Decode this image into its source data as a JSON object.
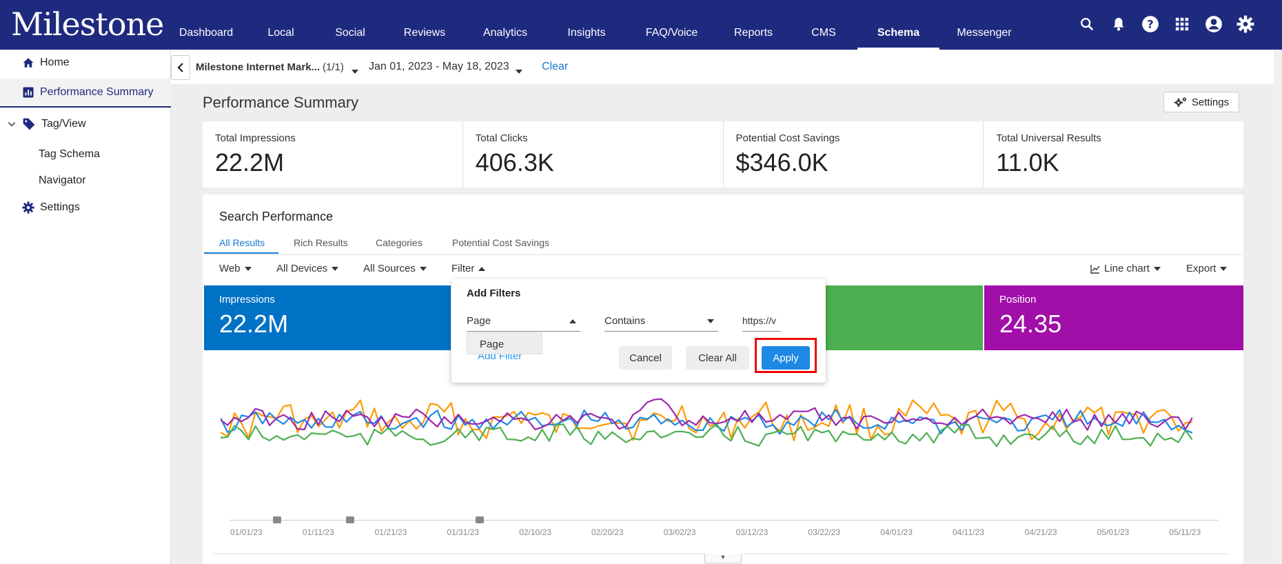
{
  "app": {
    "logo": "Milestone",
    "nav": [
      "Dashboard",
      "Local",
      "Social",
      "Reviews",
      "Analytics",
      "Insights",
      "FAQ/Voice",
      "Reports",
      "CMS",
      "Schema",
      "Messenger"
    ],
    "nav_active": "Schema"
  },
  "sidebar": {
    "items": [
      {
        "label": "Home",
        "icon": "home-icon"
      },
      {
        "label": "Performance Summary",
        "icon": "bar-chart-icon",
        "active": true
      },
      {
        "label": "Tag/View",
        "icon": "tag-icon"
      },
      {
        "label": "Tag Schema"
      },
      {
        "label": "Navigator"
      },
      {
        "label": "Settings",
        "icon": "gear-icon"
      }
    ]
  },
  "filterbar": {
    "account": "Milestone Internet Mark...",
    "account_count": "(1/1)",
    "date_range": "Jan 01, 2023 - May 18, 2023",
    "clear": "Clear"
  },
  "page": {
    "title": "Performance Summary",
    "settings_label": "Settings"
  },
  "kpis": [
    {
      "label": "Total Impressions",
      "value": "22.2M"
    },
    {
      "label": "Total Clicks",
      "value": "406.3K"
    },
    {
      "label": "Potential Cost Savings",
      "value": "$346.0K"
    },
    {
      "label": "Total Universal Results",
      "value": "11.0K"
    }
  ],
  "search_performance": {
    "title": "Search Performance",
    "tabs": [
      "All Results",
      "Rich Results",
      "Categories",
      "Potential Cost Savings"
    ],
    "active_tab": "All Results",
    "dropdowns": {
      "web": "Web",
      "devices": "All Devices",
      "sources": "All Sources",
      "filter": "Filter",
      "chart_type": "Line chart",
      "export": "Export"
    },
    "metrics": [
      {
        "label": "Impressions",
        "value": "22.2M",
        "color": "#0072c6"
      },
      {
        "label": "Position",
        "value": "24.35",
        "color": "#a10ea8"
      }
    ],
    "green_tile_color": "#4caf50"
  },
  "filter_popup": {
    "title": "Add Filters",
    "field": "Page",
    "operator": "Contains",
    "value": "https://v",
    "option": "Page",
    "add_filter": "Add Filter",
    "cancel": "Cancel",
    "clear_all": "Clear All",
    "apply": "Apply"
  },
  "chart_data": {
    "type": "line",
    "x_ticks": [
      "01/01/23",
      "01/11/23",
      "01/21/23",
      "01/31/23",
      "02/10/23",
      "02/20/23",
      "03/02/23",
      "03/12/23",
      "03/22/23",
      "04/01/23",
      "04/11/23",
      "04/21/23",
      "05/01/23",
      "05/11/23"
    ],
    "series": [
      {
        "color": "#ff9800"
      },
      {
        "color": "#1e88e5"
      },
      {
        "color": "#9c27b0"
      },
      {
        "color": "#4caf50"
      }
    ]
  }
}
